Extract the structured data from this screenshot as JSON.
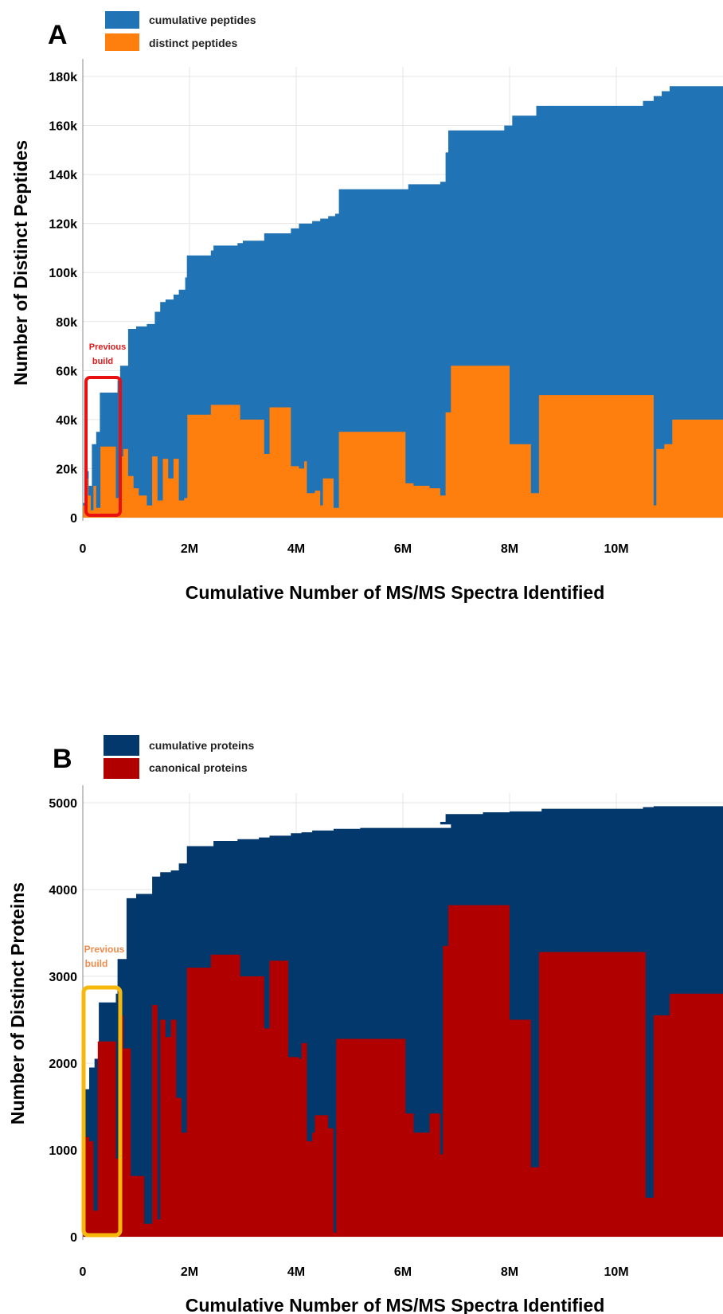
{
  "panels": [
    {
      "panel_label": "A",
      "annotation": {
        "line1": "Previous",
        "line2": "build",
        "color": "#e01b1b",
        "box_color": "#e81010"
      },
      "chart_data": {
        "type": "area",
        "xlabel": "Cumulative Number of MS/MS Spectra Identified",
        "ylabel": "Number of Distinct Peptides",
        "xlim": [
          0,
          12000000
        ],
        "ylim": [
          0,
          180000
        ],
        "x_ticks": [
          0,
          2000000,
          4000000,
          6000000,
          8000000,
          10000000
        ],
        "x_tick_labels": [
          "0",
          "2M",
          "4M",
          "6M",
          "8M",
          "10M"
        ],
        "y_ticks": [
          0,
          20000,
          40000,
          60000,
          80000,
          100000,
          120000,
          140000,
          160000,
          180000
        ],
        "y_tick_labels": [
          "0",
          "20k",
          "40k",
          "60k",
          "80k",
          "100k",
          "120k",
          "140k",
          "160k",
          "180k"
        ],
        "grid": true,
        "legend_position": "top-left",
        "series": [
          {
            "name": "cumulative peptides",
            "color": "#2073b4",
            "points": [
              [
                0,
                6000
              ],
              [
                60000,
                19000
              ],
              [
                110000,
                13000
              ],
              [
                170000,
                30000
              ],
              [
                250000,
                35000
              ],
              [
                320000,
                51000
              ],
              [
                650000,
                56000
              ],
              [
                700000,
                62000
              ],
              [
                850000,
                77000
              ],
              [
                1000000,
                78000
              ],
              [
                1200000,
                79000
              ],
              [
                1350000,
                84000
              ],
              [
                1450000,
                88000
              ],
              [
                1550000,
                89000
              ],
              [
                1700000,
                91000
              ],
              [
                1800000,
                93000
              ],
              [
                1920000,
                98000
              ],
              [
                1950000,
                107000
              ],
              [
                2400000,
                109000
              ],
              [
                2450000,
                111000
              ],
              [
                2900000,
                112000
              ],
              [
                3000000,
                113000
              ],
              [
                3400000,
                116000
              ],
              [
                3900000,
                118000
              ],
              [
                4050000,
                120000
              ],
              [
                4300000,
                121000
              ],
              [
                4450000,
                122000
              ],
              [
                4600000,
                123000
              ],
              [
                4730000,
                124000
              ],
              [
                4800000,
                134000
              ],
              [
                6100000,
                136000
              ],
              [
                6700000,
                137000
              ],
              [
                6800000,
                149000
              ],
              [
                6850000,
                158000
              ],
              [
                7900000,
                160000
              ],
              [
                8050000,
                164000
              ],
              [
                8500000,
                168000
              ],
              [
                10500000,
                170000
              ],
              [
                10700000,
                172000
              ],
              [
                10850000,
                174000
              ],
              [
                11000000,
                176000
              ],
              [
                12000000,
                176000
              ]
            ]
          },
          {
            "name": "distinct peptides",
            "color": "#ff7f0e",
            "points": [
              [
                0,
                5000
              ],
              [
                50000,
                16000
              ],
              [
                100000,
                9000
              ],
              [
                150000,
                3000
              ],
              [
                200000,
                13000
              ],
              [
                250000,
                4000
              ],
              [
                330000,
                29000
              ],
              [
                620000,
                8000
              ],
              [
                680000,
                25000
              ],
              [
                760000,
                28000
              ],
              [
                850000,
                17000
              ],
              [
                950000,
                12000
              ],
              [
                1050000,
                9000
              ],
              [
                1200000,
                5000
              ],
              [
                1300000,
                25000
              ],
              [
                1400000,
                7000
              ],
              [
                1500000,
                24000
              ],
              [
                1600000,
                16000
              ],
              [
                1700000,
                24000
              ],
              [
                1800000,
                7000
              ],
              [
                1900000,
                8000
              ],
              [
                1960000,
                42000
              ],
              [
                2350000,
                42000
              ],
              [
                2400000,
                46000
              ],
              [
                2900000,
                46000
              ],
              [
                2950000,
                40000
              ],
              [
                3400000,
                26000
              ],
              [
                3500000,
                45000
              ],
              [
                3900000,
                21000
              ],
              [
                4050000,
                20000
              ],
              [
                4150000,
                23000
              ],
              [
                4200000,
                10000
              ],
              [
                4350000,
                11000
              ],
              [
                4450000,
                5000
              ],
              [
                4500000,
                16000
              ],
              [
                4700000,
                4000
              ],
              [
                4800000,
                35000
              ],
              [
                5900000,
                35000
              ],
              [
                6050000,
                14000
              ],
              [
                6200000,
                13000
              ],
              [
                6500000,
                12000
              ],
              [
                6700000,
                9000
              ],
              [
                6800000,
                43000
              ],
              [
                6900000,
                62000
              ],
              [
                7600000,
                62000
              ],
              [
                8000000,
                30000
              ],
              [
                8400000,
                10000
              ],
              [
                8550000,
                50000
              ],
              [
                10700000,
                5000
              ],
              [
                10750000,
                28000
              ],
              [
                10900000,
                30000
              ],
              [
                11050000,
                40000
              ],
              [
                12000000,
                40000
              ]
            ]
          }
        ]
      }
    },
    {
      "panel_label": "B",
      "annotation": {
        "line1": "Previous",
        "line2": "build",
        "color": "#ef8a4a",
        "box_color": "#f7b80c"
      },
      "chart_data": {
        "type": "area",
        "xlabel": "Cumulative Number of MS/MS Spectra Identified",
        "ylabel": "Number of Distinct Proteins",
        "xlim": [
          0,
          12000000
        ],
        "ylim": [
          0,
          5000
        ],
        "x_ticks": [
          0,
          2000000,
          4000000,
          6000000,
          8000000,
          10000000
        ],
        "x_tick_labels": [
          "0",
          "2M",
          "4M",
          "6M",
          "8M",
          "10M"
        ],
        "y_ticks": [
          0,
          1000,
          2000,
          3000,
          4000,
          5000
        ],
        "y_tick_labels": [
          "0",
          "1000",
          "2000",
          "3000",
          "4000",
          "5000"
        ],
        "grid": true,
        "legend_position": "top-left",
        "series": [
          {
            "name": "cumulative proteins",
            "color": "#03386c",
            "points": [
              [
                0,
                700
              ],
              [
                40000,
                1700
              ],
              [
                120000,
                1950
              ],
              [
                220000,
                2050
              ],
              [
                300000,
                2700
              ],
              [
                620000,
                2800
              ],
              [
                650000,
                3200
              ],
              [
                820000,
                3900
              ],
              [
                1000000,
                3950
              ],
              [
                1300000,
                4150
              ],
              [
                1450000,
                4200
              ],
              [
                1650000,
                4220
              ],
              [
                1800000,
                4300
              ],
              [
                1950000,
                4500
              ],
              [
                2400000,
                4500
              ],
              [
                2450000,
                4560
              ],
              [
                2900000,
                4580
              ],
              [
                3300000,
                4600
              ],
              [
                3500000,
                4620
              ],
              [
                3900000,
                4650
              ],
              [
                4100000,
                4660
              ],
              [
                4300000,
                4680
              ],
              [
                4700000,
                4700
              ],
              [
                5200000,
                4710
              ],
              [
                6900000,
                4750
              ],
              [
                6700000,
                4780
              ],
              [
                6800000,
                4870
              ],
              [
                7500000,
                4890
              ],
              [
                8000000,
                4900
              ],
              [
                8600000,
                4930
              ],
              [
                10500000,
                4950
              ],
              [
                10700000,
                4960
              ],
              [
                12000000,
                4960
              ]
            ]
          },
          {
            "name": "canonical proteins",
            "color": "#b00000",
            "points": [
              [
                0,
                450
              ],
              [
                50000,
                1150
              ],
              [
                120000,
                1100
              ],
              [
                200000,
                300
              ],
              [
                280000,
                2250
              ],
              [
                580000,
                2250
              ],
              [
                620000,
                900
              ],
              [
                680000,
                2550
              ],
              [
                760000,
                2170
              ],
              [
                900000,
                700
              ],
              [
                1150000,
                150
              ],
              [
                1300000,
                2670
              ],
              [
                1400000,
                200
              ],
              [
                1450000,
                2500
              ],
              [
                1550000,
                2300
              ],
              [
                1650000,
                2500
              ],
              [
                1750000,
                1600
              ],
              [
                1850000,
                1200
              ],
              [
                1950000,
                3100
              ],
              [
                2350000,
                3100
              ],
              [
                2400000,
                3250
              ],
              [
                2900000,
                3250
              ],
              [
                2950000,
                3000
              ],
              [
                3400000,
                2400
              ],
              [
                3500000,
                3180
              ],
              [
                3850000,
                2070
              ],
              [
                4050000,
                2050
              ],
              [
                4100000,
                2230
              ],
              [
                4200000,
                1100
              ],
              [
                4300000,
                1200
              ],
              [
                4350000,
                1400
              ],
              [
                4450000,
                1400
              ],
              [
                4600000,
                1250
              ],
              [
                4700000,
                50
              ],
              [
                4750000,
                2280
              ],
              [
                5950000,
                2280
              ],
              [
                6050000,
                1420
              ],
              [
                6200000,
                1200
              ],
              [
                6500000,
                1420
              ],
              [
                6700000,
                950
              ],
              [
                6750000,
                3350
              ],
              [
                6850000,
                3820
              ],
              [
                7600000,
                3820
              ],
              [
                8000000,
                2500
              ],
              [
                8400000,
                800
              ],
              [
                8550000,
                3280
              ],
              [
                10450000,
                3280
              ],
              [
                10550000,
                450
              ],
              [
                10700000,
                2550
              ],
              [
                10950000,
                2550
              ],
              [
                11000000,
                2800
              ],
              [
                12000000,
                2800
              ]
            ]
          }
        ]
      }
    }
  ]
}
